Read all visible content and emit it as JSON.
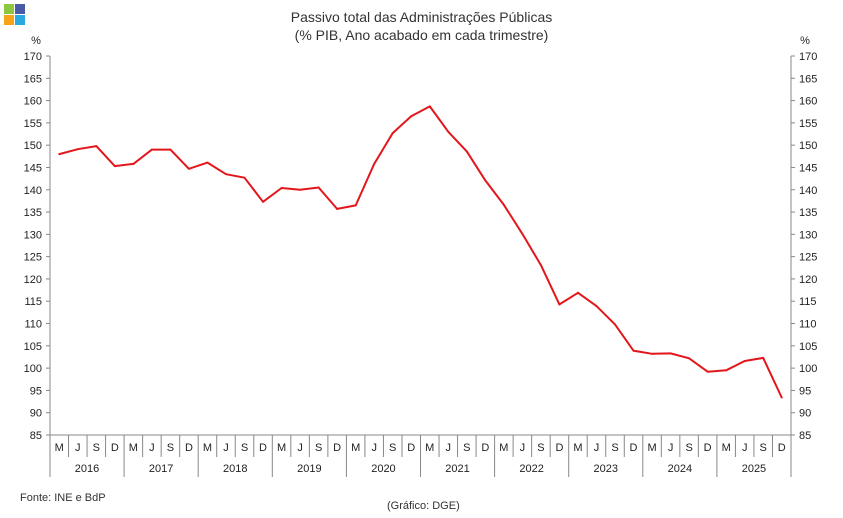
{
  "logo": {
    "colors": [
      "#8dc63f",
      "#4b5aa7",
      "#f7a21b",
      "#29a9e0"
    ]
  },
  "chart_data": {
    "type": "line",
    "title": "Passivo total das Administrações Públicas",
    "subtitle": "(% PIB, Ano acabado em cada trimestre)",
    "ylabel_left": "%",
    "ylabel_right": "%",
    "ylim": [
      85,
      170
    ],
    "yticks": [
      85,
      90,
      95,
      100,
      105,
      110,
      115,
      120,
      125,
      130,
      135,
      140,
      145,
      150,
      155,
      160,
      165,
      170
    ],
    "quarter_labels": [
      "M",
      "J",
      "S",
      "D"
    ],
    "years": [
      "2016",
      "2017",
      "2018",
      "2019",
      "2020",
      "2021",
      "2022",
      "2023",
      "2024",
      "2025"
    ],
    "grid": false,
    "legend": "none",
    "series": [
      {
        "color": "#e3161b",
        "values": [
          148.0,
          149.1,
          149.8,
          145.3,
          145.8,
          149.0,
          149.0,
          144.7,
          146.1,
          143.5,
          142.7,
          137.3,
          140.4,
          140.0,
          140.5,
          135.7,
          136.5,
          145.8,
          152.7,
          156.5,
          158.7,
          153.0,
          148.6,
          142.1,
          136.6,
          130.1,
          123.1,
          114.3,
          116.9,
          113.9,
          109.8,
          103.9,
          103.2,
          103.3,
          102.2,
          99.2,
          99.5,
          101.6,
          102.3,
          93.4
        ]
      }
    ]
  },
  "source": "Fonte: INE e BdP",
  "credit": "(Gráfico: DGE)"
}
